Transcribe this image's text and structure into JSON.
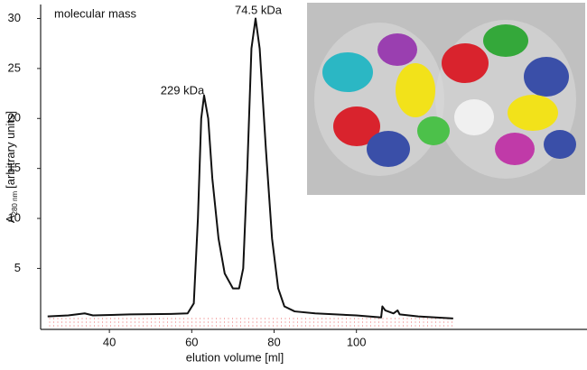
{
  "chart_data": {
    "type": "line",
    "annotations": [
      "molecular mass",
      "229 kDa",
      "74.5 kDa"
    ],
    "xlabel": "elution volume [ml]",
    "ylabel": {
      "main": "A",
      "sub": "280 nm",
      "rest": "[arbitrary units]"
    },
    "xlim": [
      23.3,
      156
    ],
    "ylim": [
      -1.1,
      31.4
    ],
    "xticks": [
      40,
      60,
      80,
      100
    ],
    "yticks": [
      5,
      10,
      15,
      20,
      25,
      30
    ],
    "series": [
      {
        "color": "#111111",
        "x": [
          25,
          30,
          34,
          36,
          45,
          55,
          59,
          60.5,
          61.5,
          62.3,
          63,
          64,
          65,
          66.5,
          68,
          70,
          71.5,
          72.5,
          73.5,
          74.5,
          75.5,
          76.5,
          78,
          79.5,
          81,
          82.5,
          85,
          90,
          100,
          106,
          106.3,
          107,
          109,
          110,
          110.5,
          115,
          123.5
        ],
        "values": [
          0.2,
          0.3,
          0.5,
          0.3,
          0.4,
          0.45,
          0.5,
          1.5,
          10,
          20,
          22.3,
          20,
          14,
          8,
          4.5,
          3,
          3,
          5,
          15,
          27,
          30,
          27,
          17,
          8,
          3,
          1.2,
          0.7,
          0.5,
          0.3,
          0.1,
          1.2,
          0.8,
          0.5,
          0.8,
          0.4,
          0.2,
          0.0
        ]
      }
    ]
  }
}
